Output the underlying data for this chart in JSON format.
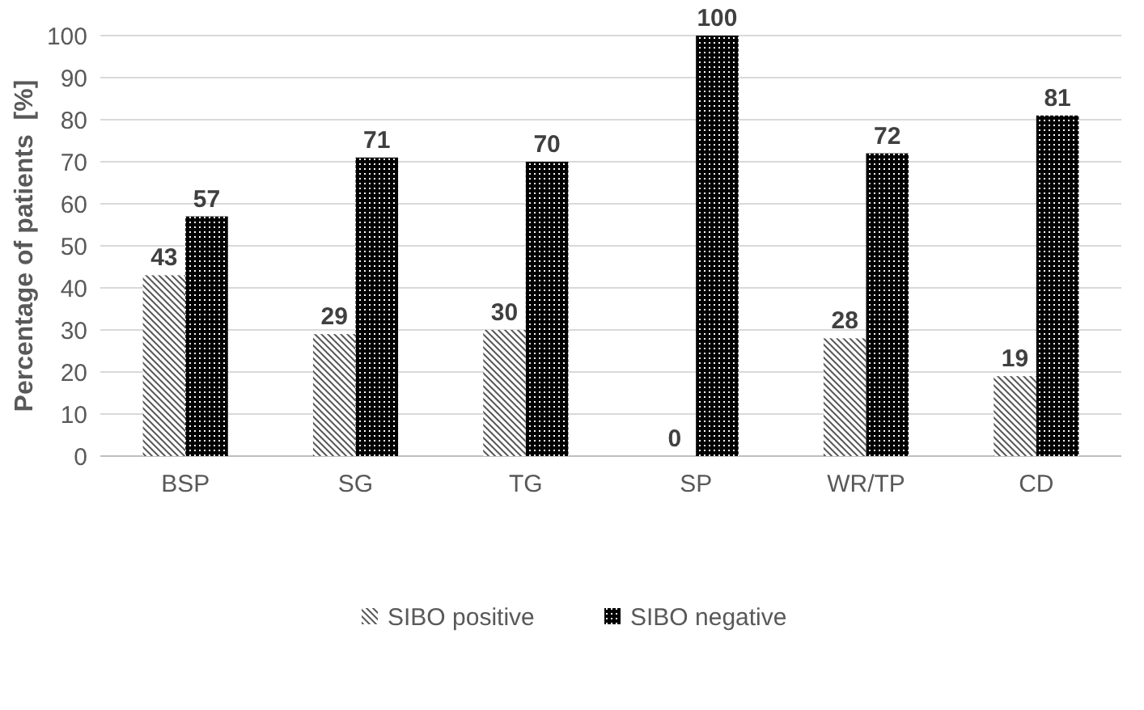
{
  "chart_data": {
    "type": "bar",
    "ylabel": "Percentage of patients  [%]",
    "categories": [
      "BSP",
      "SG",
      "TG",
      "SP",
      "WR/TP",
      "CD"
    ],
    "series": [
      {
        "name": "SIBO positive",
        "color": "#595959",
        "values": [
          43,
          29,
          30,
          0,
          28,
          19
        ]
      },
      {
        "name": "SIBO negative",
        "color": "#000000",
        "values": [
          57,
          71,
          70,
          100,
          72,
          81
        ]
      }
    ],
    "ylim": [
      0,
      100
    ],
    "yticks": [
      0,
      10,
      20,
      30,
      40,
      50,
      60,
      70,
      80,
      90,
      100
    ],
    "grid": "y",
    "legend": "bottom",
    "data_labels": true
  }
}
